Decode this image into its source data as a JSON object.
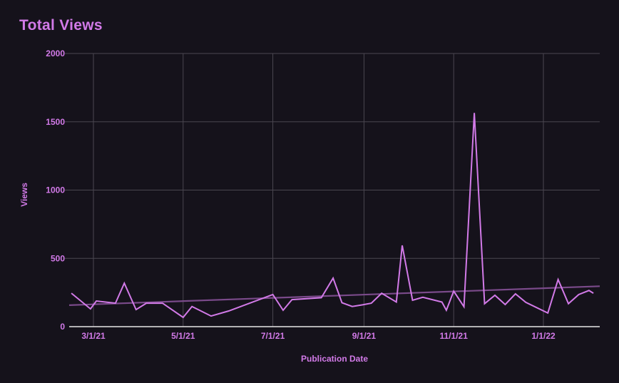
{
  "chart_data": {
    "type": "line",
    "title": "Total Views",
    "xlabel": "Publication Date",
    "ylabel": "Views",
    "ylim": [
      0,
      2000
    ],
    "yticks": [
      0,
      500,
      1000,
      1500,
      2000
    ],
    "xticks": [
      "3/1/21",
      "5/1/21",
      "7/1/21",
      "9/1/21",
      "11/1/21",
      "1/1/22"
    ],
    "grid": true,
    "legend": false,
    "series": [
      {
        "name": "Total Views",
        "color": "#d27ae8",
        "x": [
          "2/14/21",
          "2/27/21",
          "3/3/21",
          "3/16/21",
          "3/22/21",
          "3/30/21",
          "4/6/21",
          "4/17/21",
          "5/1/21",
          "5/7/21",
          "5/20/21",
          "6/1/21",
          "7/1/21",
          "7/8/21",
          "7/14/21",
          "8/3/21",
          "8/11/21",
          "8/17/21",
          "8/24/21",
          "8/31/21",
          "9/6/21",
          "9/13/21",
          "9/23/21",
          "9/27/21",
          "10/4/21",
          "10/11/21",
          "10/24/21",
          "10/27/21",
          "11/1/21",
          "11/8/21",
          "11/15/21",
          "11/22/21",
          "11/29/21",
          "12/6/21",
          "12/13/21",
          "12/20/21",
          "1/4/22",
          "1/11/22",
          "1/18/22",
          "1/25/22",
          "2/1/22",
          "2/4/22"
        ],
        "values": [
          245,
          130,
          188,
          172,
          318,
          125,
          172,
          172,
          68,
          148,
          78,
          115,
          235,
          120,
          198,
          212,
          355,
          175,
          148,
          160,
          172,
          245,
          180,
          595,
          193,
          215,
          180,
          120,
          260,
          146,
          1565,
          168,
          230,
          162,
          240,
          178,
          100,
          345,
          168,
          235,
          265,
          245
        ]
      },
      {
        "name": "Trend",
        "color": "#7a4a8a",
        "x": [
          "2/14/21",
          "2/4/22"
        ],
        "values": [
          157,
          296
        ]
      }
    ]
  }
}
